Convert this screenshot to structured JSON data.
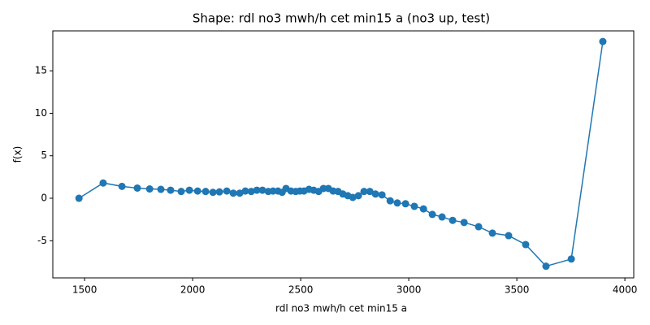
{
  "chart_data": {
    "type": "line",
    "title": "Shape: rdl no3 mwh/h cet min15 a (no3 up, test)",
    "x_label": "rdl no3 mwh/h cet min15 a",
    "y_label": "f(x)",
    "x": [
      1474,
      1586,
      1673,
      1744,
      1801,
      1853,
      1898,
      1947,
      1985,
      2023,
      2060,
      2094,
      2124,
      2158,
      2188,
      2218,
      2244,
      2271,
      2297,
      2323,
      2350,
      2372,
      2395,
      2414,
      2432,
      2455,
      2477,
      2496,
      2515,
      2538,
      2560,
      2583,
      2605,
      2628,
      2650,
      2673,
      2695,
      2718,
      2741,
      2767,
      2793,
      2820,
      2846,
      2876,
      2914,
      2947,
      2985,
      3026,
      3068,
      3109,
      3154,
      3203,
      3256,
      3323,
      3387,
      3462,
      3541,
      3635,
      3752,
      3898
    ],
    "series": [
      {
        "name": "f(x)",
        "color": "#1f77b4",
        "values": [
          0,
          1.8,
          1.4,
          1.2,
          1.1,
          1.05,
          0.95,
          0.8,
          0.95,
          0.85,
          0.8,
          0.7,
          0.75,
          0.85,
          0.6,
          0.6,
          0.85,
          0.8,
          0.95,
          0.95,
          0.8,
          0.85,
          0.85,
          0.7,
          1.15,
          0.85,
          0.8,
          0.85,
          0.85,
          1.05,
          0.95,
          0.8,
          1.15,
          1.15,
          0.85,
          0.8,
          0.5,
          0.3,
          0.1,
          0.3,
          0.8,
          0.8,
          0.5,
          0.4,
          -0.3,
          -0.55,
          -0.65,
          -0.95,
          -1.25,
          -1.9,
          -2.2,
          -2.6,
          -2.85,
          -3.35,
          -4.1,
          -4.4,
          -5.45,
          -8.0,
          -7.15,
          18.45
        ]
      }
    ],
    "xlim": [
      1353,
      4041
    ],
    "xticks": [
      1500,
      2000,
      2500,
      3000,
      3500,
      4000
    ],
    "ylim": [
      -9.37,
      19.7
    ],
    "yticks": [
      -5,
      0,
      5,
      10,
      15
    ],
    "markers": true
  }
}
